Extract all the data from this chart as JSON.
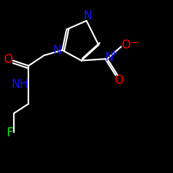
{
  "bg_color": "#000000",
  "bond_color": "#ffffff",
  "atom_colors": {
    "N": "#1414ff",
    "O": "#ff0000",
    "F": "#14ff14",
    "C": "#ffffff"
  },
  "figsize": [
    2.5,
    2.5
  ],
  "dpi": 100,
  "lw": 1.6,
  "fontsize": 11
}
